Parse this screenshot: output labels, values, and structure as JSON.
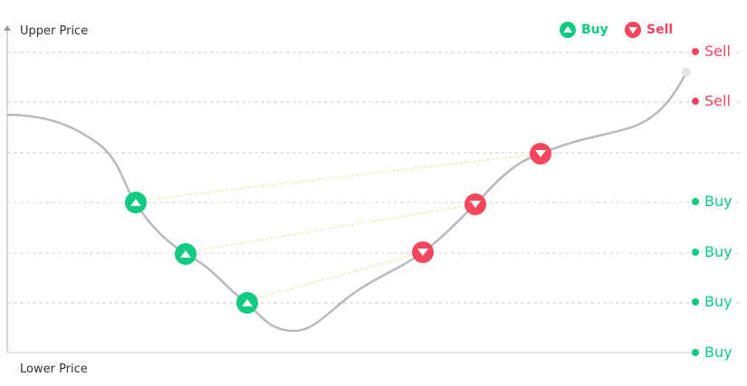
{
  "axis": {
    "upper_label": "Upper Price",
    "lower_label": "Lower Price"
  },
  "legend": {
    "buy_label": "Buy",
    "sell_label": "Sell",
    "buy_icon": "triangle-up-circle-icon",
    "sell_icon": "triangle-down-circle-icon"
  },
  "levels": [
    {
      "label": "Sell",
      "type": "sell"
    },
    {
      "label": "Sell",
      "type": "sell"
    },
    {
      "label": "Buy",
      "type": "buy"
    },
    {
      "label": "Buy",
      "type": "buy"
    },
    {
      "label": "Buy",
      "type": "buy"
    },
    {
      "label": "Buy",
      "type": "buy"
    }
  ],
  "colors": {
    "buy": "#0ecb81",
    "sell": "#f6465d",
    "price_line": "#b7b9c0",
    "grid": "#cccccc",
    "pair_line": "#f0e68c"
  }
}
